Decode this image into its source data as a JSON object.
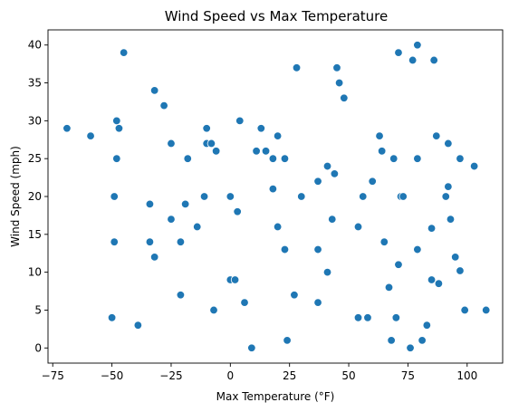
{
  "chart_data": {
    "type": "scatter",
    "title": "Wind Speed vs Max Temperature",
    "xlabel": "Max Temperature (°F)",
    "ylabel": "Wind Speed (mph)",
    "xlim": [
      -77,
      115
    ],
    "ylim": [
      -2,
      42
    ],
    "xticks": [
      -75,
      -50,
      -25,
      0,
      25,
      50,
      75,
      100
    ],
    "yticks": [
      0,
      5,
      10,
      15,
      20,
      25,
      30,
      35,
      40
    ],
    "grid": false,
    "marker_color": "#1f77b4",
    "marker_edge_color": "#ffffff",
    "points": [
      {
        "x": -69,
        "y": 29
      },
      {
        "x": -59,
        "y": 28
      },
      {
        "x": -50,
        "y": 4
      },
      {
        "x": -49,
        "y": 20
      },
      {
        "x": -49,
        "y": 14
      },
      {
        "x": -48,
        "y": 30
      },
      {
        "x": -48,
        "y": 25
      },
      {
        "x": -47,
        "y": 29
      },
      {
        "x": -45,
        "y": 39
      },
      {
        "x": -39,
        "y": 3
      },
      {
        "x": -34,
        "y": 19
      },
      {
        "x": -34,
        "y": 14
      },
      {
        "x": -32,
        "y": 34
      },
      {
        "x": -32,
        "y": 12
      },
      {
        "x": -28,
        "y": 32
      },
      {
        "x": -25,
        "y": 27
      },
      {
        "x": -25,
        "y": 17
      },
      {
        "x": -21,
        "y": 14
      },
      {
        "x": -21,
        "y": 7
      },
      {
        "x": -19,
        "y": 19
      },
      {
        "x": -18,
        "y": 25
      },
      {
        "x": -14,
        "y": 16
      },
      {
        "x": -11,
        "y": 20
      },
      {
        "x": -10,
        "y": 29
      },
      {
        "x": -10,
        "y": 27
      },
      {
        "x": -8,
        "y": 27
      },
      {
        "x": -7,
        "y": 5
      },
      {
        "x": -6,
        "y": 26
      },
      {
        "x": 0,
        "y": 20
      },
      {
        "x": 0,
        "y": 9
      },
      {
        "x": 2,
        "y": 9
      },
      {
        "x": 3,
        "y": 18
      },
      {
        "x": 4,
        "y": 30
      },
      {
        "x": 6,
        "y": 6
      },
      {
        "x": 9,
        "y": 0
      },
      {
        "x": 11,
        "y": 26
      },
      {
        "x": 13,
        "y": 29
      },
      {
        "x": 15,
        "y": 26
      },
      {
        "x": 18,
        "y": 25
      },
      {
        "x": 18,
        "y": 21
      },
      {
        "x": 20,
        "y": 28
      },
      {
        "x": 20,
        "y": 16
      },
      {
        "x": 23,
        "y": 25
      },
      {
        "x": 23,
        "y": 13
      },
      {
        "x": 24,
        "y": 1
      },
      {
        "x": 27,
        "y": 7
      },
      {
        "x": 28,
        "y": 37
      },
      {
        "x": 30,
        "y": 20
      },
      {
        "x": 37,
        "y": 22
      },
      {
        "x": 37,
        "y": 13
      },
      {
        "x": 37,
        "y": 6
      },
      {
        "x": 41,
        "y": 24
      },
      {
        "x": 41,
        "y": 10
      },
      {
        "x": 43,
        "y": 17
      },
      {
        "x": 44,
        "y": 23
      },
      {
        "x": 45,
        "y": 37
      },
      {
        "x": 46,
        "y": 35
      },
      {
        "x": 48,
        "y": 33
      },
      {
        "x": 54,
        "y": 16
      },
      {
        "x": 54,
        "y": 4
      },
      {
        "x": 56,
        "y": 20
      },
      {
        "x": 58,
        "y": 4
      },
      {
        "x": 60,
        "y": 22
      },
      {
        "x": 63,
        "y": 28
      },
      {
        "x": 64,
        "y": 26
      },
      {
        "x": 65,
        "y": 14
      },
      {
        "x": 67,
        "y": 8
      },
      {
        "x": 68,
        "y": 1
      },
      {
        "x": 69,
        "y": 25
      },
      {
        "x": 70,
        "y": 4
      },
      {
        "x": 71,
        "y": 39
      },
      {
        "x": 71,
        "y": 11
      },
      {
        "x": 72,
        "y": 20
      },
      {
        "x": 73,
        "y": 20
      },
      {
        "x": 76,
        "y": 0
      },
      {
        "x": 77,
        "y": 38
      },
      {
        "x": 79,
        "y": 40
      },
      {
        "x": 79,
        "y": 25
      },
      {
        "x": 79,
        "y": 13
      },
      {
        "x": 81,
        "y": 1
      },
      {
        "x": 83,
        "y": 3
      },
      {
        "x": 85,
        "y": 9
      },
      {
        "x": 85,
        "y": 15.8
      },
      {
        "x": 86,
        "y": 38
      },
      {
        "x": 87,
        "y": 28
      },
      {
        "x": 88,
        "y": 8.5
      },
      {
        "x": 91,
        "y": 20
      },
      {
        "x": 92,
        "y": 27
      },
      {
        "x": 92,
        "y": 21.3
      },
      {
        "x": 93,
        "y": 17
      },
      {
        "x": 95,
        "y": 12
      },
      {
        "x": 97,
        "y": 25
      },
      {
        "x": 97,
        "y": 10.2
      },
      {
        "x": 99,
        "y": 5
      },
      {
        "x": 103,
        "y": 24
      },
      {
        "x": 108,
        "y": 5
      }
    ]
  }
}
